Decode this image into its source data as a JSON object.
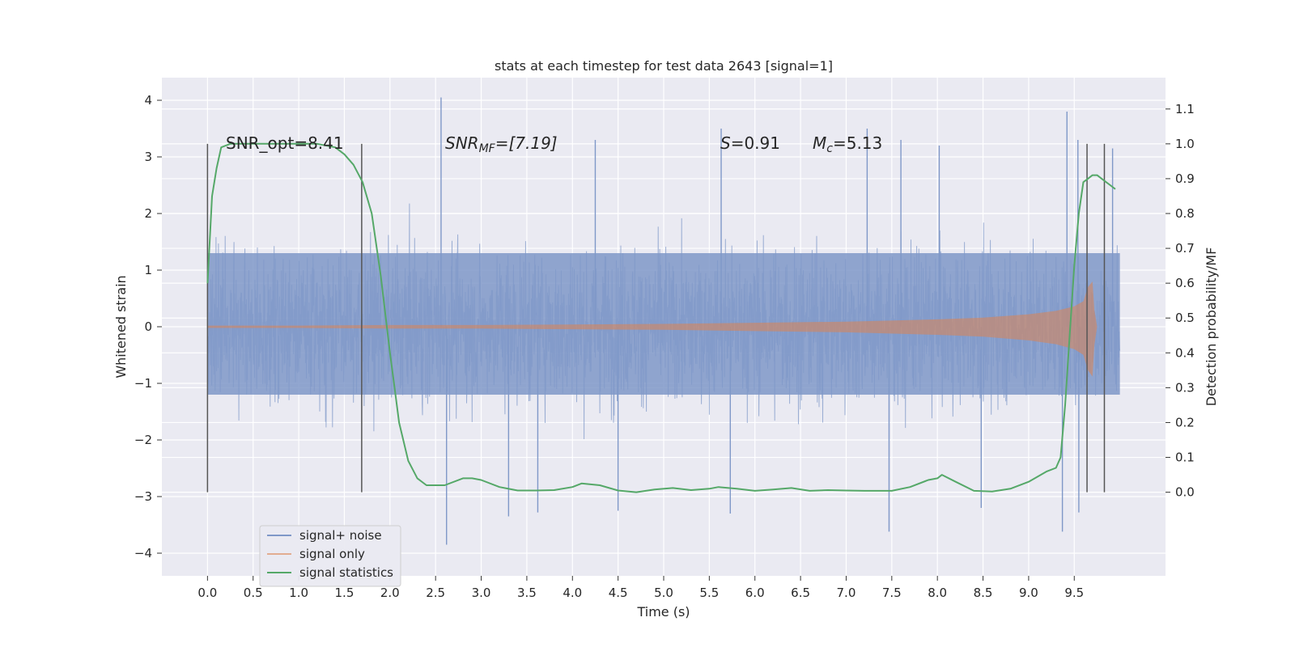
{
  "chart_data": {
    "type": "line",
    "title": "stats at each timestep for test data 2643 [signal=1]",
    "xlabel": "Time (s)",
    "ylabel_left": "Whitened strain",
    "ylabel_right": "Detection probability/MF",
    "xlim": [
      -0.5,
      10.5
    ],
    "ylim_left": [
      -4.4,
      4.4
    ],
    "ylim_right": [
      -0.24,
      1.19
    ],
    "x_ticks": [
      0.0,
      0.5,
      1.0,
      1.5,
      2.0,
      2.5,
      3.0,
      3.5,
      4.0,
      4.5,
      5.0,
      5.5,
      6.0,
      6.5,
      7.0,
      7.5,
      8.0,
      8.5,
      9.0,
      9.5
    ],
    "x_tick_labels": [
      "0.0",
      "0.5",
      "1.0",
      "1.5",
      "2.0",
      "2.5",
      "3.0",
      "3.5",
      "4.0",
      "4.5",
      "5.0",
      "5.5",
      "6.0",
      "6.5",
      "7.0",
      "7.5",
      "8.0",
      "8.5",
      "9.0",
      "9.5"
    ],
    "y_left_ticks": [
      -4,
      -3,
      -2,
      -1,
      0,
      1,
      2,
      3,
      4
    ],
    "y_left_tick_labels": [
      "−4",
      "−3",
      "−2",
      "−1",
      "0",
      "1",
      "2",
      "3",
      "4"
    ],
    "y_right_ticks": [
      0.0,
      0.1,
      0.2,
      0.3,
      0.4,
      0.5,
      0.6,
      0.7,
      0.8,
      0.9,
      1.0,
      1.1
    ],
    "y_right_tick_labels": [
      "0.0",
      "0.1",
      "0.2",
      "0.3",
      "0.4",
      "0.5",
      "0.6",
      "0.7",
      "0.8",
      "0.9",
      "1.0",
      "1.1"
    ],
    "grid": true,
    "legend": {
      "placement": "lower-left",
      "entries": [
        {
          "label": "signal+ noise",
          "color": "#7f98c8"
        },
        {
          "label": "signal only",
          "color": "#dd8452"
        },
        {
          "label": "signal statistics",
          "color": "#55a868"
        }
      ]
    },
    "annotations": {
      "snr_opt": "SNR_opt=8.41",
      "snr_mf_prefix": "SNR",
      "snr_mf_sub": "MF",
      "snr_mf_value": "=[7.19]",
      "s_prefix": "S",
      "s_value": "=0.91",
      "mc_prefix": "M",
      "mc_sub": "c",
      "mc_value": "=5.13"
    },
    "vertical_lines": {
      "color": "#555555",
      "x": [
        0.0,
        1.69,
        9.64,
        9.83
      ],
      "y_range_right_axis": [
        0.0,
        1.0
      ]
    },
    "series": [
      {
        "name": "signal+ noise",
        "color": "#7f98c8",
        "x_range": [
          0.0,
          10.0
        ],
        "typical_envelope": [
          -1.8,
          1.8
        ],
        "dense_band": [
          -1.2,
          1.3
        ],
        "peaks": [
          {
            "x": 2.56,
            "y": 4.05
          },
          {
            "x": 9.42,
            "y": 3.8
          },
          {
            "x": 5.63,
            "y": 3.5
          },
          {
            "x": 7.23,
            "y": 3.5
          },
          {
            "x": 9.54,
            "y": 3.3
          },
          {
            "x": 4.25,
            "y": 3.3
          },
          {
            "x": 8.02,
            "y": 3.2
          },
          {
            "x": 9.92,
            "y": 3.15
          },
          {
            "x": 7.6,
            "y": 3.3
          },
          {
            "x": 2.62,
            "y": -3.85
          },
          {
            "x": 9.37,
            "y": -3.62
          },
          {
            "x": 7.47,
            "y": -3.62
          },
          {
            "x": 3.3,
            "y": -3.35
          },
          {
            "x": 3.62,
            "y": -3.28
          },
          {
            "x": 5.73,
            "y": -3.3
          },
          {
            "x": 9.55,
            "y": -3.28
          },
          {
            "x": 4.5,
            "y": -3.25
          },
          {
            "x": 8.48,
            "y": -3.2
          }
        ]
      },
      {
        "name": "signal only",
        "color": "#dd8452",
        "x": [
          0.0,
          1.0,
          2.0,
          3.0,
          4.0,
          5.0,
          6.0,
          7.0,
          8.0,
          8.5,
          9.0,
          9.3,
          9.5,
          9.6,
          9.65,
          9.7,
          9.72,
          9.75,
          10.0
        ],
        "amplitude": [
          0.02,
          0.02,
          0.03,
          0.03,
          0.04,
          0.05,
          0.07,
          0.09,
          0.13,
          0.16,
          0.22,
          0.28,
          0.36,
          0.45,
          0.7,
          0.8,
          0.3,
          0.0,
          0.0
        ]
      },
      {
        "name": "signal statistics",
        "color": "#55a868",
        "x": [
          0.0,
          0.05,
          0.1,
          0.15,
          0.25,
          0.4,
          0.6,
          0.8,
          1.0,
          1.2,
          1.4,
          1.5,
          1.6,
          1.7,
          1.8,
          1.9,
          2.0,
          2.05,
          2.1,
          2.2,
          2.3,
          2.4,
          2.5,
          2.6,
          2.8,
          2.9,
          3.0,
          3.2,
          3.4,
          3.6,
          3.8,
          4.0,
          4.1,
          4.3,
          4.5,
          4.7,
          4.9,
          5.1,
          5.3,
          5.5,
          5.6,
          5.8,
          6.0,
          6.2,
          6.4,
          6.6,
          6.8,
          7.0,
          7.2,
          7.4,
          7.5,
          7.7,
          7.9,
          8.0,
          8.05,
          8.2,
          8.4,
          8.6,
          8.8,
          9.0,
          9.2,
          9.3,
          9.35,
          9.4,
          9.45,
          9.5,
          9.55,
          9.6,
          9.65,
          9.7,
          9.75,
          9.8,
          9.9,
          9.95
        ],
        "y": [
          0.6,
          0.85,
          0.93,
          0.99,
          1.0,
          1.0,
          1.0,
          1.0,
          1.0,
          1.0,
          0.99,
          0.97,
          0.94,
          0.89,
          0.8,
          0.62,
          0.4,
          0.3,
          0.2,
          0.09,
          0.04,
          0.02,
          0.02,
          0.02,
          0.04,
          0.04,
          0.035,
          0.015,
          0.005,
          0.005,
          0.006,
          0.015,
          0.025,
          0.02,
          0.005,
          0.0,
          0.008,
          0.012,
          0.006,
          0.01,
          0.015,
          0.01,
          0.004,
          0.008,
          0.012,
          0.004,
          0.006,
          0.005,
          0.004,
          0.004,
          0.004,
          0.015,
          0.035,
          0.04,
          0.05,
          0.03,
          0.004,
          0.002,
          0.01,
          0.03,
          0.06,
          0.07,
          0.1,
          0.25,
          0.45,
          0.65,
          0.8,
          0.89,
          0.9,
          0.91,
          0.91,
          0.9,
          0.88,
          0.87
        ]
      }
    ]
  }
}
